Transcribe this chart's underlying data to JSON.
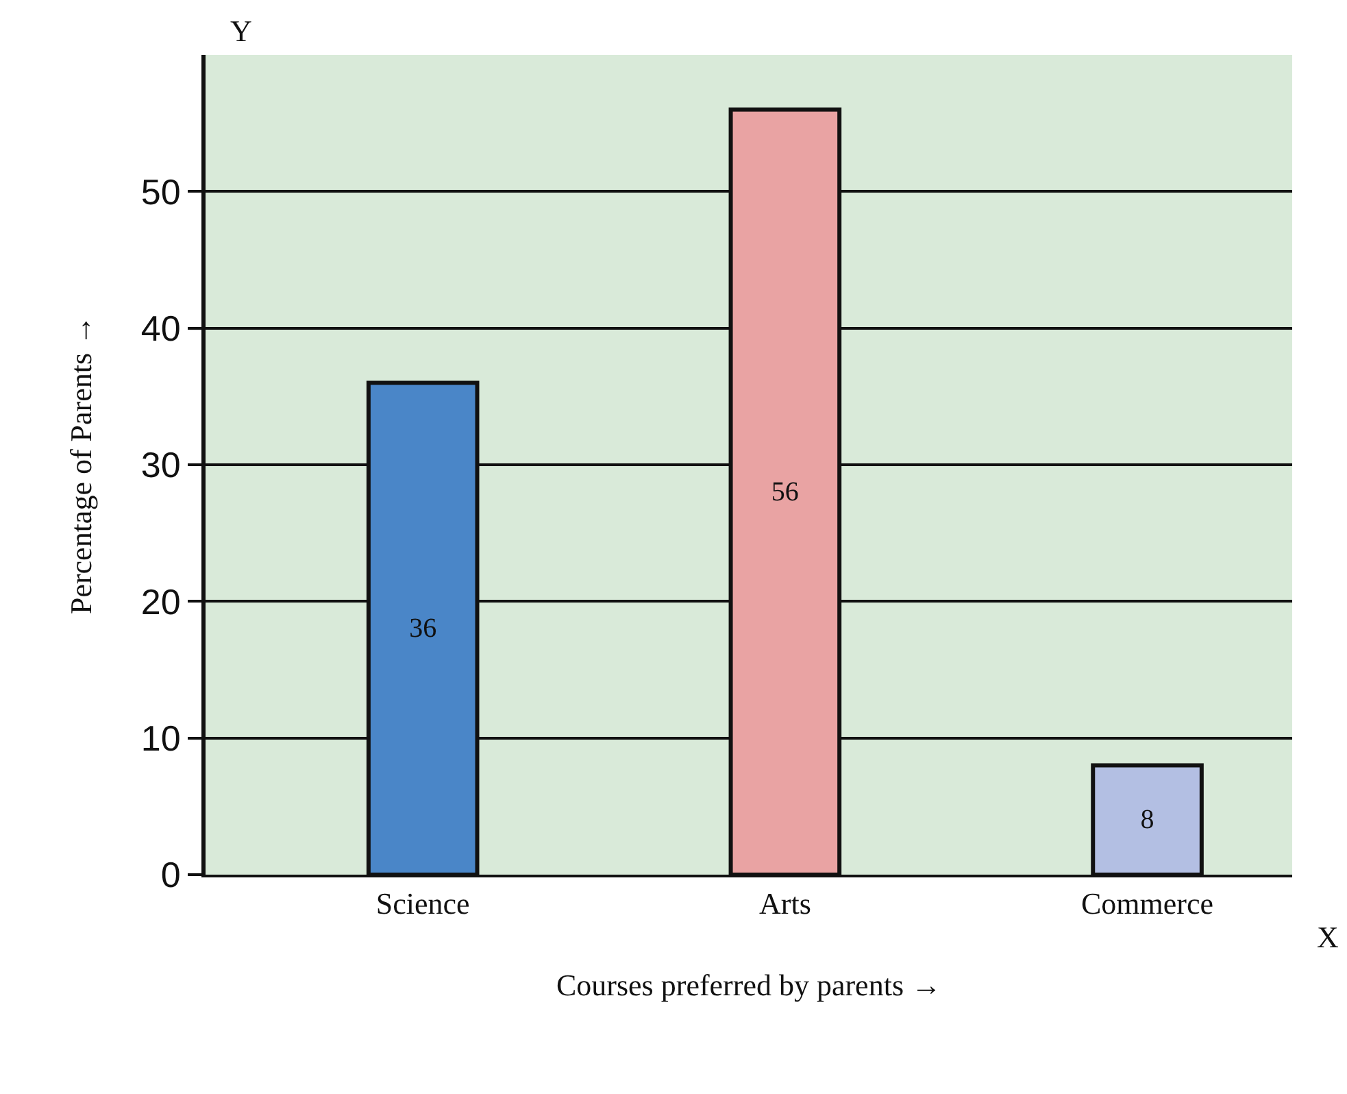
{
  "chart_data": {
    "type": "bar",
    "xlabel": "Courses preferred by parents →",
    "ylabel": "Percentage of Parents →",
    "categories": [
      "Science",
      "Arts",
      "Commerce"
    ],
    "values": [
      36,
      56,
      8
    ],
    "colors": [
      "#4a86c8",
      "#e9a3a3",
      "#b3bfe3"
    ],
    "ylim": [
      0,
      60
    ],
    "yticks": [
      0,
      10,
      20,
      30,
      40,
      50
    ],
    "grid": "y",
    "data_labels": true,
    "annotations": [
      "Y",
      "X"
    ]
  }
}
